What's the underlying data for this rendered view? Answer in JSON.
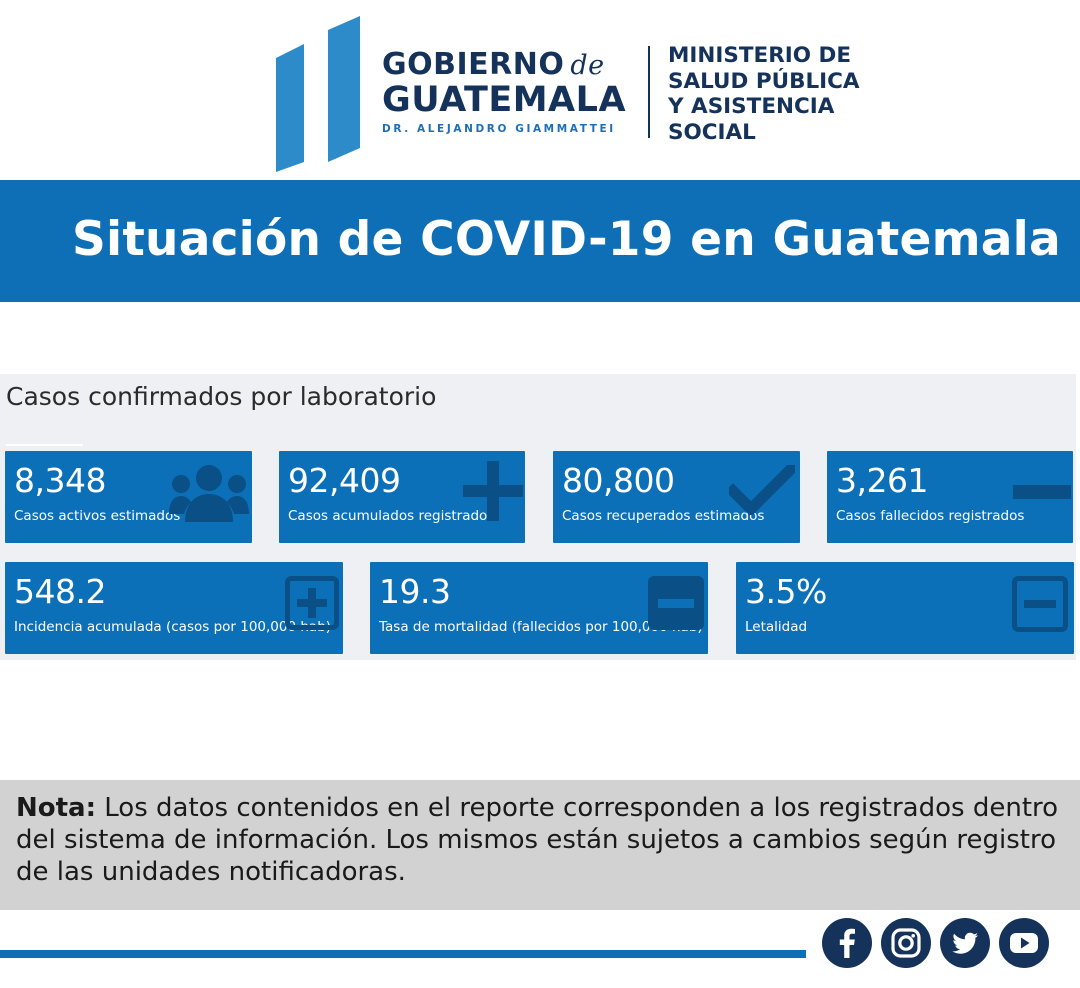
{
  "header": {
    "gov_line1": "GOBIERNO",
    "gov_de": "de",
    "gov_line2": "GUATEMALA",
    "gov_line3": "DR. ALEJANDRO GIAMMATTEI",
    "ministry_lines": [
      "MINISTERIO DE",
      "SALUD PÚBLICA",
      "Y ASISTENCIA",
      "SOCIAL"
    ]
  },
  "banner": {
    "title": "Situación de COVID-19 en Guatemala"
  },
  "panel": {
    "title": "Casos confirmados por laboratorio",
    "cards": [
      {
        "value": "8,348",
        "label": "Casos activos estimados",
        "icon": "users-icon"
      },
      {
        "value": "92,409",
        "label": "Casos acumulados registrados",
        "icon": "plus-icon"
      },
      {
        "value": "80,800",
        "label": "Casos recuperados estimados",
        "icon": "check-icon"
      },
      {
        "value": "3,261",
        "label": "Casos fallecidos registrados",
        "icon": "minus-icon"
      },
      {
        "value": "548.2",
        "label": "Incidencia acumulada (casos por 100,000 hab)",
        "icon": "plus-square-icon"
      },
      {
        "value": "19.3",
        "label": "Tasa de mortalidad (fallecidos por 100,000 hab)",
        "icon": "minus-square-filled-icon"
      },
      {
        "value": "3.5%",
        "label": "Letalidad",
        "icon": "minus-square-icon"
      }
    ]
  },
  "note": {
    "bold": "Nota:",
    "text": " Los datos contenidos en el reporte corresponden a los registrados dentro del sistema de información. Los mismos están sujetos a cambios según registro de las unidades notificadoras."
  },
  "social": [
    "facebook-icon",
    "instagram-icon",
    "twitter-icon",
    "youtube-icon"
  ],
  "colors": {
    "brand_blue": "#0e6fb6",
    "navy": "#15325b",
    "card_blue": "#0b70b8",
    "note_gray": "#d2d2d2",
    "panel_bg": "#eef0f3"
  }
}
